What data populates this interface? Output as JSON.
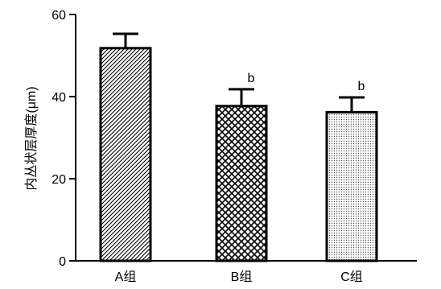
{
  "chart_data": {
    "type": "bar",
    "categories": [
      "A组",
      "B组",
      "C组"
    ],
    "values": [
      51.8,
      37.7,
      36.2
    ],
    "error_upper": [
      55.3,
      41.8,
      39.8
    ],
    "significance": [
      "",
      "b",
      "b"
    ],
    "patterns": [
      "diagonal-hatch",
      "crosshatch",
      "dots"
    ],
    "title": "",
    "xlabel": "",
    "ylabel": "内丛状层厚度(μm)",
    "ylim": [
      0,
      60
    ],
    "yticks": [
      0,
      20,
      40,
      60
    ],
    "grid": false,
    "legend": "none"
  }
}
